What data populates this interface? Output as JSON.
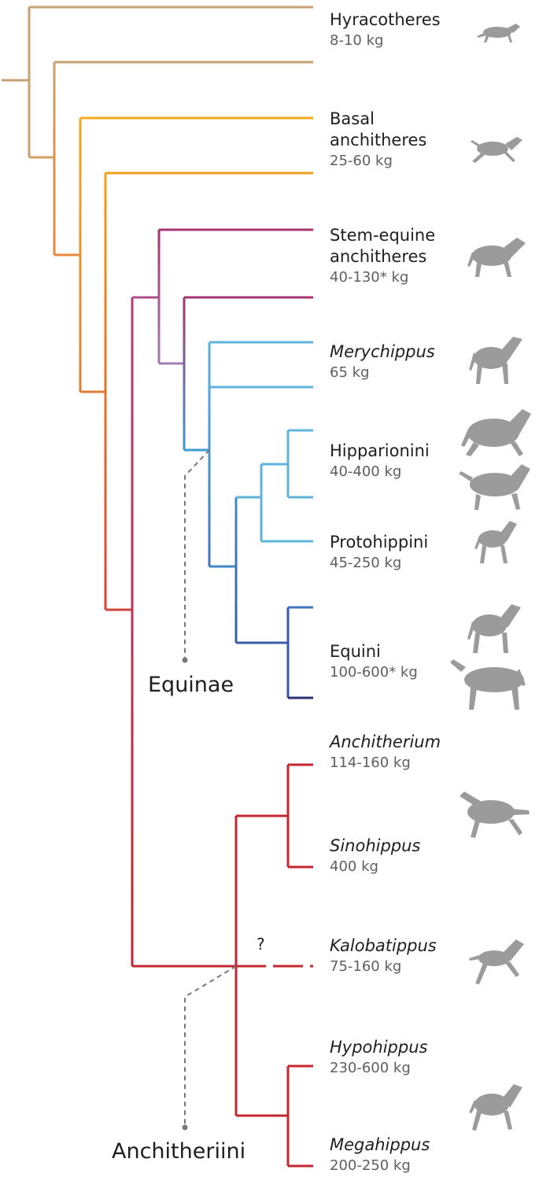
{
  "taxa": [
    {
      "lines": [
        "Hyracotheres"
      ],
      "mass": "8-10 kg",
      "italic": false
    },
    {
      "lines": [
        "Basal",
        "anchitheres"
      ],
      "mass": "25-60 kg",
      "italic": false
    },
    {
      "lines": [
        "Stem-equine",
        "anchitheres"
      ],
      "mass": "40-130* kg",
      "italic": false
    },
    {
      "lines": [
        "Merychippus"
      ],
      "mass": "65 kg",
      "italic": true
    },
    {
      "lines": [
        "Hipparionini"
      ],
      "mass": "40-400 kg",
      "italic": false
    },
    {
      "lines": [
        "Protohippini"
      ],
      "mass": "45-250 kg",
      "italic": false
    },
    {
      "lines": [
        "Equini"
      ],
      "mass": "100-600* kg",
      "italic": false
    },
    {
      "lines": [
        "Anchitherium"
      ],
      "mass": "114-160 kg",
      "italic": true
    },
    {
      "lines": [
        "Sinohippus"
      ],
      "mass": "400 kg",
      "italic": true
    },
    {
      "lines": [
        "Kalobatippus"
      ],
      "mass": "75-160 kg",
      "italic": true
    },
    {
      "lines": [
        "Hypohippus"
      ],
      "mass": "230-600 kg",
      "italic": true
    },
    {
      "lines": [
        "Megahippus"
      ],
      "mass": "200-250 kg",
      "italic": true
    }
  ],
  "clades": {
    "equinae": "Equinae",
    "anchitheriini": "Anchitheriini"
  },
  "uncertain_mark": "?",
  "colors": {
    "hyracotheres": "#c9a173",
    "basal": "#f0a020",
    "stem_equine": "#a8336c",
    "equinae_light": "#5fb4db",
    "equinae_dark": "#2c2c70",
    "anchitheriini": "#c4262e",
    "silhouette": "#9b9b9b",
    "dashed": "#777777"
  },
  "silhouettes": [
    "hyracothere-silhouette",
    "basal-anchithere-silhouette",
    "stem-equine-silhouette",
    "merychippus-silhouette",
    "hipparionini-silhouette-1",
    "hipparionini-silhouette-2",
    "protohippini-silhouette",
    "equini-silhouette-1",
    "equini-silhouette-2",
    "anchitherium-silhouette",
    "kalobatippus-silhouette",
    "hypohippus-silhouette"
  ]
}
